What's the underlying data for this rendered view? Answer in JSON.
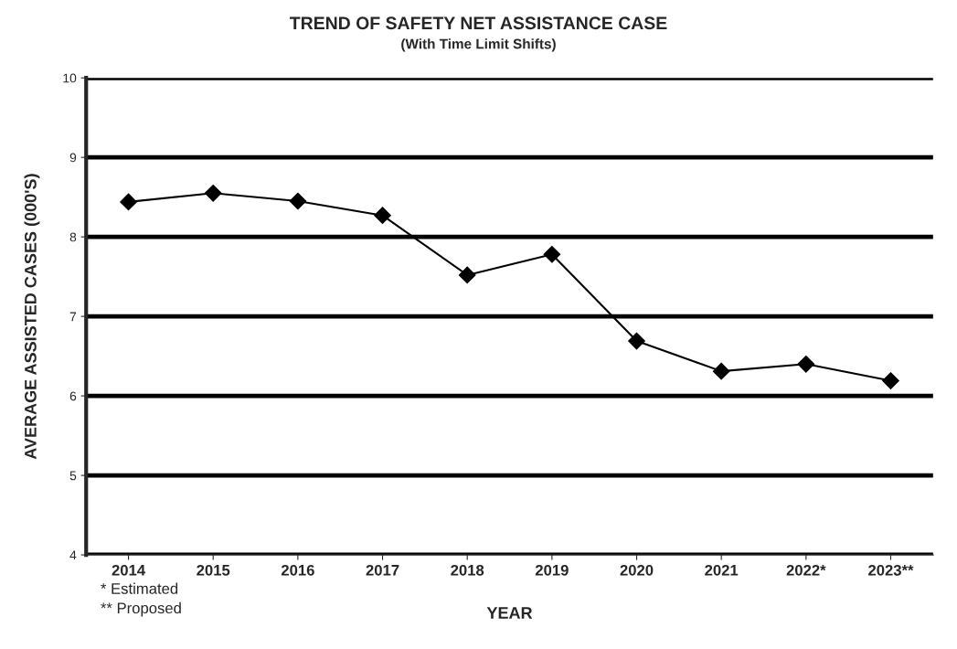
{
  "chart_data": {
    "type": "line",
    "title": "TREND OF SAFETY NET ASSISTANCE CASE",
    "subtitle": "(With Time Limit Shifts)",
    "xlabel": "YEAR",
    "ylabel": "AVERAGE ASSISTED CASES (000'S)",
    "categories": [
      "2014",
      "2015",
      "2016",
      "2017",
      "2018",
      "2019",
      "2020",
      "2021",
      "2022*",
      "2023**"
    ],
    "series": [
      {
        "color": "#000000",
        "values": [
          8.44,
          8.55,
          8.45,
          8.27,
          7.52,
          7.78,
          6.69,
          6.31,
          6.4,
          6.19
        ]
      }
    ],
    "ylim": [
      4,
      10
    ],
    "yticks": [
      4,
      5,
      6,
      7,
      8,
      9,
      10
    ],
    "grid": "y",
    "marker": "diamond",
    "line_style": "solid",
    "legend": false,
    "annotations": [
      "* Estimated",
      "** Proposed"
    ]
  }
}
